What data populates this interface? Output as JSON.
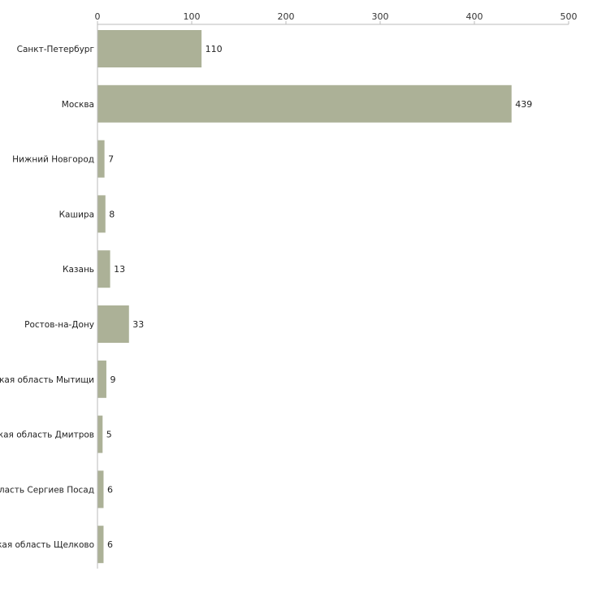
{
  "chart_data": {
    "type": "bar",
    "orientation": "horizontal",
    "title": "",
    "xlabel": "",
    "ylabel": "",
    "xlim": [
      0,
      500
    ],
    "x_ticks": [
      0,
      100,
      200,
      300,
      400,
      500
    ],
    "x_axis_position": "top",
    "grid": false,
    "categories": [
      "Санкт-Петербург",
      "Москва",
      "Нижний Новгород",
      "Кашира",
      "Казань",
      "Ростов-на-Дону",
      "кая область Мытищи",
      "кая область Дмитров",
      "ласть Сергиев Посад",
      "кая область Щелково"
    ],
    "values": [
      110,
      439,
      7,
      8,
      13,
      33,
      9,
      5,
      6,
      6
    ],
    "bar_color": "#acb197",
    "axis_color": "#bbbbbb"
  }
}
